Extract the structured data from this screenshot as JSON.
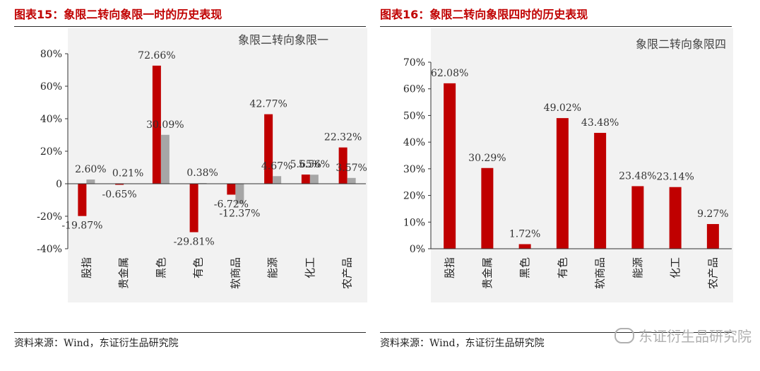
{
  "figures": [
    {
      "title": "图表15：象限二转向象限一时的历史表现",
      "source": "资料来源：Wind，东证衍生品研究院"
    },
    {
      "title": "图表16：象限二转向象限四时的历史表现",
      "source": "资料来源：Wind，东证衍生品研究院"
    }
  ],
  "watermark": "东证衍生品研究院",
  "chart_data": [
    {
      "type": "bar",
      "title": "象限二转向象限一",
      "categories": [
        "股指",
        "贵金属",
        "黑色",
        "有色",
        "软商品",
        "能源",
        "化工",
        "农产品"
      ],
      "series": [
        {
          "name": "series1",
          "color": "#c00000",
          "values": [
            -19.87,
            -0.65,
            72.66,
            -29.81,
            -6.72,
            42.77,
            5.65,
            22.32
          ],
          "labels": [
            "-19.87%",
            "-0.65%",
            "72.66%",
            "-29.81%",
            "-6.72%",
            "42.77%",
            "5.65%",
            "22.32%"
          ]
        },
        {
          "name": "series2",
          "color": "#a6a6a6",
          "values": [
            2.6,
            0.21,
            30.09,
            0.38,
            -12.37,
            4.67,
            5.56,
            3.57
          ],
          "labels": [
            "2.60%",
            "0.21%",
            "30.09%",
            "0.38%",
            "-12.37%",
            "4.67%",
            "5.56%",
            "3.57%"
          ]
        }
      ],
      "ylim": [
        -40,
        80
      ],
      "yticks": [
        -40,
        -20,
        0,
        20,
        40,
        60,
        80
      ],
      "ytick_labels": [
        "-40%",
        "-20%",
        "0",
        "20%",
        "40%",
        "60%",
        "80%"
      ]
    },
    {
      "type": "bar",
      "title": "象限二转向象限四",
      "categories": [
        "股指",
        "贵金属",
        "黑色",
        "有色",
        "软商品",
        "能源",
        "化工",
        "农产品"
      ],
      "series": [
        {
          "name": "series1",
          "color": "#c00000",
          "values": [
            62.08,
            30.29,
            1.72,
            49.02,
            43.48,
            23.48,
            23.14,
            9.27
          ],
          "labels": [
            "62.08%",
            "30.29%",
            "1.72%",
            "49.02%",
            "43.48%",
            "23.48%",
            "23.14%",
            "9.27%"
          ]
        }
      ],
      "ylim": [
        0,
        70
      ],
      "yticks": [
        0,
        10,
        20,
        30,
        40,
        50,
        60,
        70
      ],
      "ytick_labels": [
        "0%",
        "10%",
        "20%",
        "30%",
        "40%",
        "50%",
        "60%",
        "70%"
      ]
    }
  ]
}
